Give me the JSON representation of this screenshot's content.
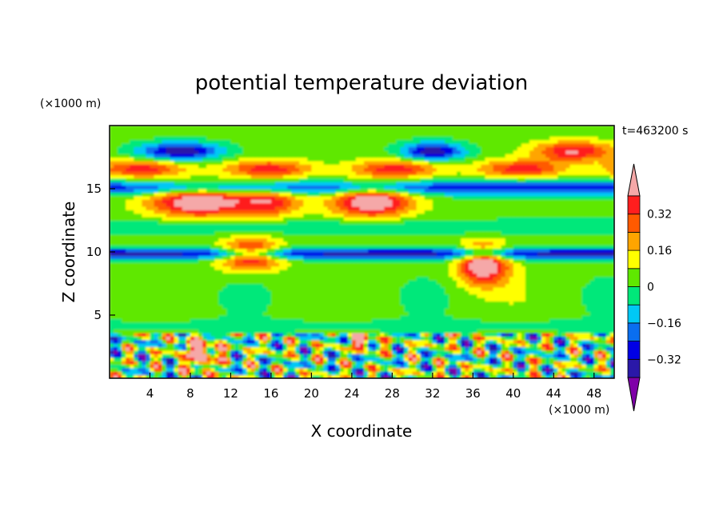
{
  "chart_data": {
    "type": "heatmap",
    "title": "potential temperature deviation",
    "xlabel": "X coordinate",
    "ylabel": "Z coordinate",
    "x_unit": "(×1000 m)",
    "y_unit": "(×1000 m)",
    "time_label": "t=463200 s",
    "xlim": [
      0,
      50
    ],
    "ylim": [
      0,
      20
    ],
    "x_ticks": [
      4,
      8,
      12,
      16,
      20,
      24,
      28,
      32,
      36,
      40,
      44,
      48
    ],
    "y_ticks": [
      5,
      10,
      15
    ],
    "colorbar": {
      "levels": [
        -0.4,
        -0.32,
        -0.24,
        -0.16,
        -0.08,
        0,
        0.08,
        0.16,
        0.24,
        0.32,
        0.4
      ],
      "colors": [
        "#7f00a8",
        "#2a18a8",
        "#0000e6",
        "#0a6ef0",
        "#00c8f5",
        "#00e87a",
        "#5fe800",
        "#ffff00",
        "#ffa500",
        "#ff5a00",
        "#ff1e1e",
        "#f5a8a8"
      ],
      "tick_labels": [
        "0.32",
        "0.16",
        "0",
        "−0.16",
        "−0.32"
      ],
      "tick_values": [
        0.32,
        0.16,
        0,
        -0.16,
        -0.32
      ],
      "extend": "both"
    },
    "grid": false,
    "legend": "colorbar-right"
  }
}
